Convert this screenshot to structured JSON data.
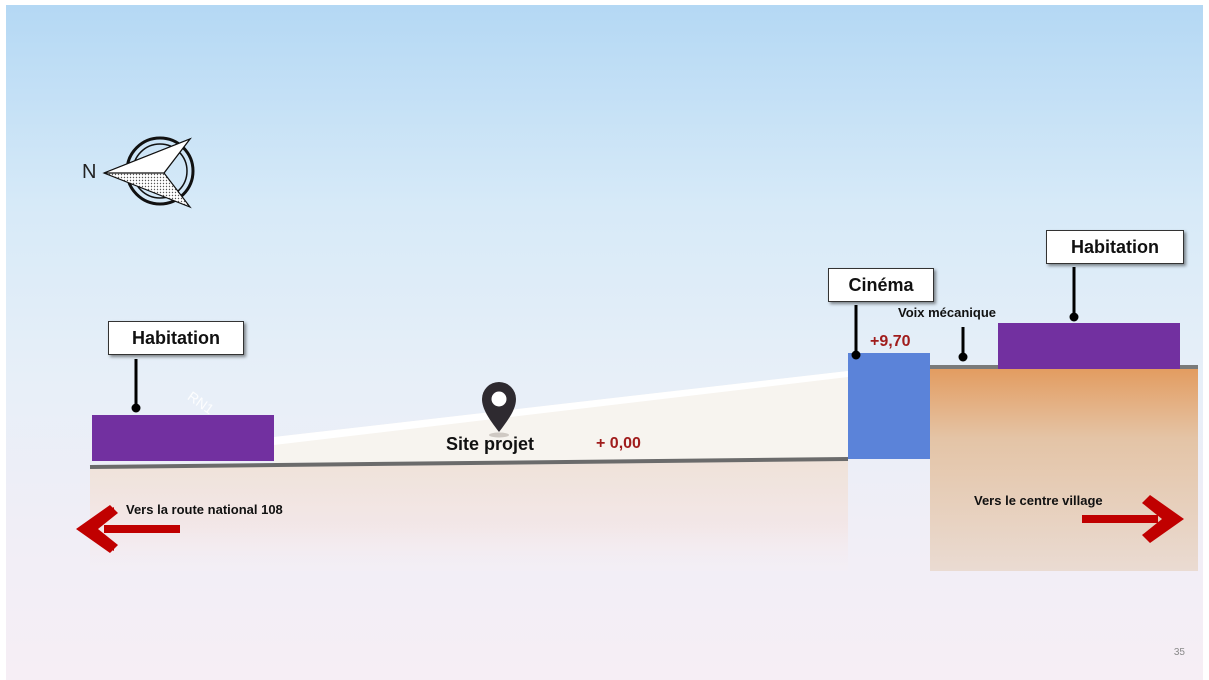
{
  "compass": {
    "north_label": "N"
  },
  "buildings": {
    "left": {
      "label": "Habitation",
      "color": "#7230a0"
    },
    "cinema": {
      "label": "Cinéma",
      "color": "#5b83d9",
      "elevation": "+9,70"
    },
    "right": {
      "label": "Habitation",
      "color": "#7230a0"
    }
  },
  "site": {
    "label": "Site projet",
    "elevation": "+ 0,00"
  },
  "road": {
    "label": "Voix mécanique",
    "tag": "RN1"
  },
  "directions": {
    "left": {
      "label": "Vers la route national 108",
      "arrow_color": "#c00000"
    },
    "right": {
      "label": "Vers le centre village",
      "arrow_color": "#c00000"
    }
  },
  "page_number": "35"
}
